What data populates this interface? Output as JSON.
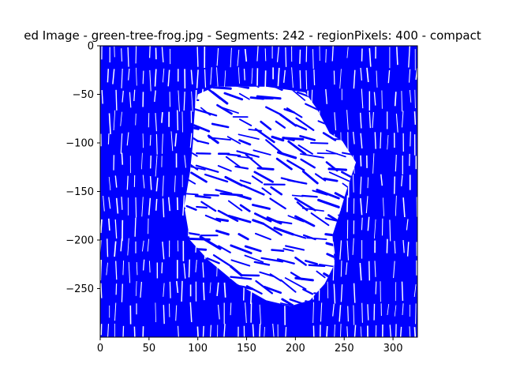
{
  "chart_data": {
    "type": "heatmap",
    "title": "ed Image - green-tree-frog.jpg - Segments: 242 - regionPixels: 400 - compact",
    "xlabel": "",
    "ylabel": "",
    "xlim": [
      0,
      325
    ],
    "ylim": [
      -300,
      0
    ],
    "x_ticks": [
      {
        "value": 0,
        "label": "0"
      },
      {
        "value": 50,
        "label": "50"
      },
      {
        "value": 100,
        "label": "100"
      },
      {
        "value": 150,
        "label": "150"
      },
      {
        "value": 200,
        "label": "200"
      },
      {
        "value": 250,
        "label": "250"
      },
      {
        "value": 300,
        "label": "300"
      }
    ],
    "y_ticks": [
      {
        "value": 0,
        "label": "0"
      },
      {
        "value": -50,
        "label": "−50"
      },
      {
        "value": -100,
        "label": "−100"
      },
      {
        "value": -150,
        "label": "−150"
      },
      {
        "value": -200,
        "label": "−200"
      },
      {
        "value": -250,
        "label": "−250"
      }
    ],
    "colors": {
      "segment_fill": "#0000ff",
      "boundary": "#ffffff",
      "axis": "#000000"
    },
    "grid": false,
    "legend": "none",
    "light_region_outline": [
      [
        97,
        -65
      ],
      [
        100,
        -50
      ],
      [
        118,
        -42
      ],
      [
        170,
        -42
      ],
      [
        210,
        -48
      ],
      [
        222,
        -65
      ],
      [
        235,
        -90
      ],
      [
        248,
        -98
      ],
      [
        262,
        -120
      ],
      [
        252,
        -150
      ],
      [
        246,
        -170
      ],
      [
        238,
        -195
      ],
      [
        240,
        -225
      ],
      [
        230,
        -245
      ],
      [
        215,
        -262
      ],
      [
        195,
        -268
      ],
      [
        170,
        -262
      ],
      [
        140,
        -245
      ],
      [
        110,
        -220
      ],
      [
        92,
        -200
      ],
      [
        86,
        -165
      ],
      [
        92,
        -130
      ],
      [
        95,
        -100
      ],
      [
        96,
        -80
      ]
    ],
    "stroke_groups": [
      {
        "name": "background",
        "orientation_deg": 92,
        "spacing_x": 7,
        "segment_height": 22
      },
      {
        "name": "region",
        "orientation_deg": 160,
        "spacing_x": 11,
        "segment_height": 14
      }
    ]
  }
}
